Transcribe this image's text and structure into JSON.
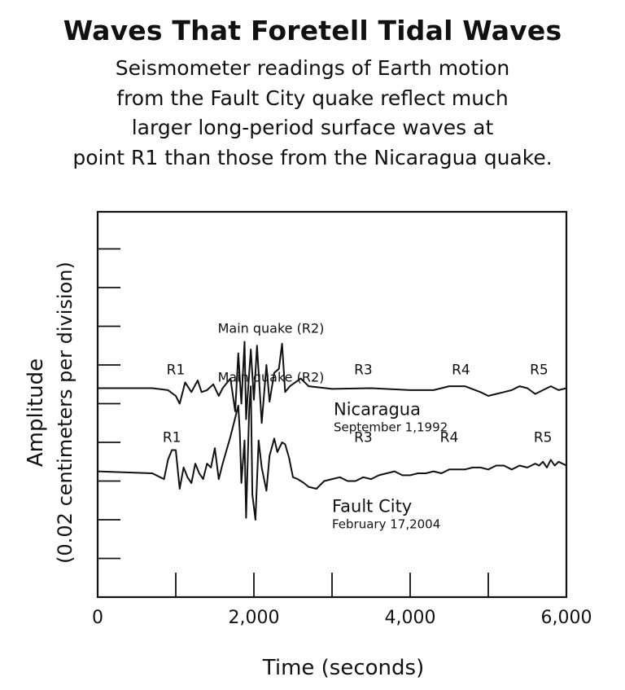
{
  "title": "Waves That Foretell Tidal Waves",
  "subtitle_lines": [
    "Seismometer readings of Earth motion",
    "from the Fault City quake reflect much",
    "larger long-period surface waves at",
    "point R1 than those from the Nicaragua quake."
  ],
  "chart_data": {
    "type": "line",
    "xlabel": "Time (seconds)",
    "ylabel": [
      "Amplitude",
      "(0.02 centimeters per division)"
    ],
    "xlim": [
      0,
      6000
    ],
    "xticks": [
      0,
      2000,
      4000,
      6000
    ],
    "xtick_labels": [
      "0",
      "2,000",
      "4,000",
      "6,000"
    ],
    "minor_xticks": [
      1000,
      3000,
      5000
    ],
    "y_divisions": 9,
    "grid": false,
    "series": [
      {
        "name": "Nicaragua",
        "date": "September 1,1992",
        "baseline_division": 5.4,
        "main_quake_label": "Main quake (R2)",
        "phase_labels": [
          {
            "label": "R1",
            "x": 1000
          },
          {
            "label": "R3",
            "x": 3400
          },
          {
            "label": "R4",
            "x": 4650
          },
          {
            "label": "R5",
            "x": 5650
          }
        ],
        "points": [
          [
            0,
            0
          ],
          [
            700,
            0
          ],
          [
            900,
            -0.05
          ],
          [
            1000,
            -0.2
          ],
          [
            1050,
            -0.4
          ],
          [
            1120,
            0.15
          ],
          [
            1200,
            -0.1
          ],
          [
            1280,
            0.2
          ],
          [
            1330,
            -0.1
          ],
          [
            1400,
            -0.05
          ],
          [
            1480,
            0.1
          ],
          [
            1550,
            -0.2
          ],
          [
            1600,
            0
          ],
          [
            1700,
            0.25
          ],
          [
            1760,
            -0.6
          ],
          [
            1800,
            0.9
          ],
          [
            1840,
            -0.4
          ],
          [
            1880,
            1.2
          ],
          [
            1900,
            -0.8
          ],
          [
            1960,
            1.0
          ],
          [
            2000,
            -0.3
          ],
          [
            2040,
            1.1
          ],
          [
            2100,
            -0.9
          ],
          [
            2160,
            0.6
          ],
          [
            2200,
            -0.35
          ],
          [
            2260,
            0.4
          ],
          [
            2320,
            0.5
          ],
          [
            2360,
            1.15
          ],
          [
            2400,
            -0.1
          ],
          [
            2460,
            0.05
          ],
          [
            2600,
            0.25
          ],
          [
            2700,
            0.05
          ],
          [
            3000,
            -0.02
          ],
          [
            3500,
            0
          ],
          [
            4000,
            -0.05
          ],
          [
            4300,
            -0.05
          ],
          [
            4500,
            0.05
          ],
          [
            4700,
            0.05
          ],
          [
            4900,
            -0.1
          ],
          [
            5000,
            -0.2
          ],
          [
            5100,
            -0.15
          ],
          [
            5200,
            -0.1
          ],
          [
            5300,
            -0.05
          ],
          [
            5400,
            0.05
          ],
          [
            5500,
            0
          ],
          [
            5600,
            -0.15
          ],
          [
            5700,
            -0.05
          ],
          [
            5800,
            0.05
          ],
          [
            5900,
            -0.05
          ],
          [
            6000,
            0
          ]
        ]
      },
      {
        "name": "Fault City",
        "date": "February 17,2004",
        "baseline_division": 3.25,
        "main_quake_label": "Main quake (R2)",
        "phase_labels": [
          {
            "label": "R1",
            "x": 950
          },
          {
            "label": "R3",
            "x": 3400
          },
          {
            "label": "R4",
            "x": 4500
          },
          {
            "label": "R5",
            "x": 5700
          }
        ],
        "points": [
          [
            0,
            0
          ],
          [
            700,
            -0.05
          ],
          [
            800,
            -0.15
          ],
          [
            850,
            -0.2
          ],
          [
            900,
            0.3
          ],
          [
            950,
            0.55
          ],
          [
            1000,
            0.55
          ],
          [
            1050,
            -0.45
          ],
          [
            1100,
            0.1
          ],
          [
            1150,
            -0.15
          ],
          [
            1200,
            -0.3
          ],
          [
            1250,
            0.2
          ],
          [
            1300,
            -0.05
          ],
          [
            1350,
            -0.2
          ],
          [
            1400,
            0.2
          ],
          [
            1450,
            0.1
          ],
          [
            1500,
            0.6
          ],
          [
            1550,
            -0.2
          ],
          [
            1600,
            0.2
          ],
          [
            1700,
            0.9
          ],
          [
            1750,
            1.3
          ],
          [
            1800,
            1.7
          ],
          [
            1820,
            1.0
          ],
          [
            1840,
            -0.3
          ],
          [
            1880,
            0.8
          ],
          [
            1900,
            -1.2
          ],
          [
            1940,
            1.6
          ],
          [
            1960,
            2.2
          ],
          [
            1980,
            -0.6
          ],
          [
            2020,
            -1.25
          ],
          [
            2060,
            0.8
          ],
          [
            2100,
            0.1
          ],
          [
            2160,
            -0.5
          ],
          [
            2200,
            0.4
          ],
          [
            2260,
            0.85
          ],
          [
            2300,
            0.5
          ],
          [
            2360,
            0.75
          ],
          [
            2400,
            0.7
          ],
          [
            2450,
            0.35
          ],
          [
            2500,
            -0.15
          ],
          [
            2560,
            -0.2
          ],
          [
            2640,
            -0.3
          ],
          [
            2700,
            -0.4
          ],
          [
            2800,
            -0.45
          ],
          [
            2900,
            -0.25
          ],
          [
            3000,
            -0.2
          ],
          [
            3100,
            -0.15
          ],
          [
            3200,
            -0.25
          ],
          [
            3300,
            -0.25
          ],
          [
            3400,
            -0.15
          ],
          [
            3500,
            -0.2
          ],
          [
            3600,
            -0.1
          ],
          [
            3700,
            -0.05
          ],
          [
            3800,
            0
          ],
          [
            3900,
            -0.1
          ],
          [
            4000,
            -0.1
          ],
          [
            4100,
            -0.05
          ],
          [
            4200,
            -0.05
          ],
          [
            4300,
            0
          ],
          [
            4400,
            -0.05
          ],
          [
            4500,
            0.05
          ],
          [
            4600,
            0.05
          ],
          [
            4700,
            0.05
          ],
          [
            4800,
            0.1
          ],
          [
            4900,
            0.1
          ],
          [
            5000,
            0.05
          ],
          [
            5100,
            0.15
          ],
          [
            5200,
            0.15
          ],
          [
            5300,
            0.05
          ],
          [
            5400,
            0.15
          ],
          [
            5500,
            0.1
          ],
          [
            5600,
            0.2
          ],
          [
            5650,
            0.15
          ],
          [
            5700,
            0.25
          ],
          [
            5750,
            0.1
          ],
          [
            5800,
            0.3
          ],
          [
            5850,
            0.15
          ],
          [
            5900,
            0.25
          ],
          [
            6000,
            0.15
          ]
        ]
      }
    ]
  }
}
